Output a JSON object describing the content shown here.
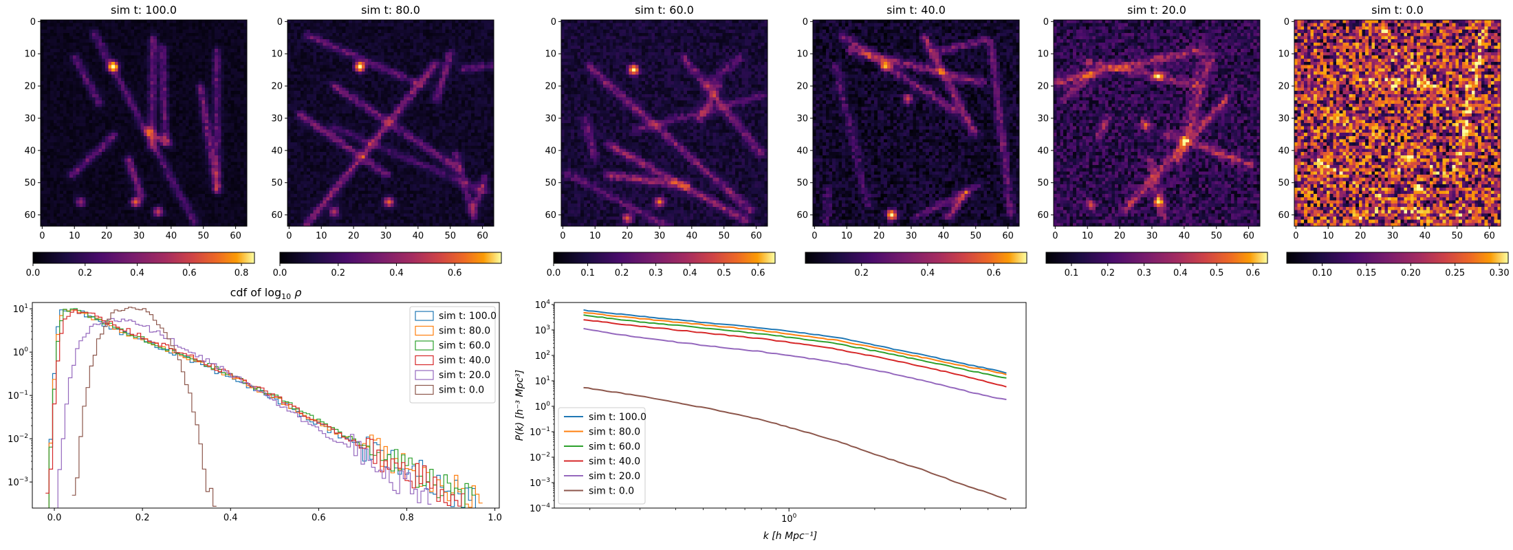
{
  "colors": {
    "series": [
      "#1f77b4",
      "#ff7f0e",
      "#2ca02c",
      "#d62728",
      "#9467bd",
      "#8c564b"
    ]
  },
  "chart_data": [
    {
      "type": "heatmap",
      "title": "sim t: 100.0",
      "grid_size": 64,
      "x_ticks": [
        0,
        10,
        20,
        30,
        40,
        50,
        60
      ],
      "y_ticks": [
        0,
        10,
        20,
        30,
        40,
        50,
        60
      ],
      "colormap": "inferno",
      "colorbar_range": [
        0.0,
        0.85
      ],
      "colorbar_ticks": [
        0.0,
        0.2,
        0.4,
        0.6,
        0.8
      ],
      "colorbar_labels": [
        "0.0",
        "0.2",
        "0.4",
        "0.6",
        "0.8"
      ],
      "hotspots": [
        [
          22,
          14,
          0.85
        ],
        [
          29,
          56,
          0.55
        ],
        [
          36,
          59,
          0.45
        ],
        [
          12,
          56,
          0.35
        ]
      ],
      "background_level": 0.04,
      "seed": 11
    },
    {
      "type": "heatmap",
      "title": "sim t: 80.0",
      "grid_size": 64,
      "x_ticks": [
        0,
        10,
        20,
        30,
        40,
        50,
        60
      ],
      "y_ticks": [
        0,
        10,
        20,
        30,
        40,
        50,
        60
      ],
      "colormap": "inferno",
      "colorbar_range": [
        0.0,
        0.76
      ],
      "colorbar_ticks": [
        0.0,
        0.2,
        0.4,
        0.6
      ],
      "colorbar_labels": [
        "0.0",
        "0.2",
        "0.4",
        "0.6"
      ],
      "hotspots": [
        [
          22,
          14,
          0.75
        ],
        [
          31,
          56,
          0.5
        ],
        [
          14,
          59,
          0.35
        ]
      ],
      "background_level": 0.05,
      "seed": 23
    },
    {
      "type": "heatmap",
      "title": "sim t: 60.0",
      "grid_size": 64,
      "x_ticks": [
        0,
        10,
        20,
        30,
        40,
        50,
        60
      ],
      "y_ticks": [
        0,
        10,
        20,
        30,
        40,
        50,
        60
      ],
      "colormap": "inferno",
      "colorbar_range": [
        0.0,
        0.65
      ],
      "colorbar_ticks": [
        0.0,
        0.1,
        0.2,
        0.3,
        0.4,
        0.5,
        0.6
      ],
      "colorbar_labels": [
        "0.0",
        "0.1",
        "0.2",
        "0.3",
        "0.4",
        "0.5",
        "0.6"
      ],
      "hotspots": [
        [
          22,
          15,
          0.62
        ],
        [
          30,
          56,
          0.45
        ],
        [
          20,
          61,
          0.4
        ]
      ],
      "background_level": 0.06,
      "seed": 37
    },
    {
      "type": "heatmap",
      "title": "sim t: 40.0",
      "grid_size": 64,
      "x_ticks": [
        0,
        10,
        20,
        30,
        40,
        50,
        60
      ],
      "y_ticks": [
        0,
        10,
        20,
        30,
        40,
        50,
        60
      ],
      "colormap": "inferno",
      "colorbar_range": [
        0.03,
        0.7
      ],
      "colorbar_ticks": [
        0.2,
        0.4,
        0.6
      ],
      "colorbar_labels": [
        "0.2",
        "0.4",
        "0.6"
      ],
      "hotspots": [
        [
          24,
          60,
          0.7
        ],
        [
          22,
          14,
          0.45
        ],
        [
          29,
          24,
          0.4
        ]
      ],
      "background_level": 0.08,
      "seed": 53
    },
    {
      "type": "heatmap",
      "title": "sim t: 20.0",
      "grid_size": 64,
      "x_ticks": [
        0,
        10,
        20,
        30,
        40,
        50,
        60
      ],
      "y_ticks": [
        0,
        10,
        20,
        30,
        40,
        50,
        60
      ],
      "colormap": "inferno",
      "colorbar_range": [
        0.03,
        0.64
      ],
      "colorbar_ticks": [
        0.1,
        0.2,
        0.3,
        0.4,
        0.5,
        0.6
      ],
      "colorbar_labels": [
        "0.1",
        "0.2",
        "0.3",
        "0.4",
        "0.5",
        "0.6"
      ],
      "hotspots": [
        [
          32,
          17,
          0.5
        ],
        [
          28,
          32,
          0.45
        ],
        [
          32,
          56,
          0.45
        ],
        [
          11,
          57,
          0.4
        ]
      ],
      "background_level": 0.12,
      "seed": 71
    },
    {
      "type": "heatmap",
      "title": "sim t: 0.0",
      "grid_size": 64,
      "x_ticks": [
        0,
        10,
        20,
        30,
        40,
        50,
        60
      ],
      "y_ticks": [
        0,
        10,
        20,
        30,
        40,
        50,
        60
      ],
      "colormap": "inferno",
      "colorbar_range": [
        0.06,
        0.31
      ],
      "colorbar_ticks": [
        0.1,
        0.15,
        0.2,
        0.25,
        0.3
      ],
      "colorbar_labels": [
        "0.10",
        "0.15",
        "0.20",
        "0.25",
        "0.30"
      ],
      "hotspots": [
        [
          27,
          3,
          0.3
        ],
        [
          18,
          16,
          0.28
        ],
        [
          38,
          52,
          0.3
        ],
        [
          20,
          61,
          0.27
        ],
        [
          9,
          45,
          0.26
        ],
        [
          52,
          20,
          0.24
        ]
      ],
      "background_level": 0.17,
      "seed": 97
    },
    {
      "type": "line",
      "subtype": "step-histogram",
      "title": "cdf of log",
      "title_sub": "10",
      "title_rho": "ρ",
      "yscale": "log",
      "xlim": [
        -0.05,
        1.01
      ],
      "ylim": [
        0.00025,
        14
      ],
      "x_ticks": [
        0.0,
        0.2,
        0.4,
        0.6,
        0.8,
        1.0
      ],
      "x_tick_labels": [
        "0.0",
        "0.2",
        "0.4",
        "0.6",
        "0.8",
        "1.0"
      ],
      "y_ticks": [
        0.001,
        0.01,
        0.1,
        1,
        10
      ],
      "y_tick_base": [
        "10",
        "10",
        "10",
        "10",
        "10"
      ],
      "y_tick_exp": [
        "−3",
        "−2",
        "−1",
        "0",
        "1"
      ],
      "legend_position": "top-right",
      "series": [
        {
          "name": "sim t: 100.0",
          "x": [
            -0.02,
            0.0,
            0.01,
            0.02,
            0.04,
            0.06,
            0.1,
            0.15,
            0.2,
            0.3,
            0.4,
            0.5,
            0.6,
            0.7,
            0.8,
            0.9,
            0.96
          ],
          "y": [
            0.00025,
            2.0,
            8.0,
            10.0,
            10.0,
            8.0,
            5.0,
            2.8,
            1.8,
            0.7,
            0.25,
            0.08,
            0.02,
            0.006,
            0.002,
            0.0006,
            0.00035
          ]
        },
        {
          "name": "sim t: 80.0",
          "x": [
            -0.02,
            0.0,
            0.01,
            0.02,
            0.04,
            0.06,
            0.1,
            0.15,
            0.2,
            0.3,
            0.4,
            0.5,
            0.6,
            0.7,
            0.8,
            0.9,
            0.97
          ],
          "y": [
            0.00025,
            1.5,
            7.0,
            10.0,
            10.0,
            8.0,
            5.2,
            3.0,
            1.9,
            0.75,
            0.26,
            0.085,
            0.022,
            0.007,
            0.0025,
            0.0007,
            0.00035
          ]
        },
        {
          "name": "sim t: 60.0",
          "x": [
            -0.02,
            0.0,
            0.01,
            0.02,
            0.04,
            0.06,
            0.1,
            0.15,
            0.2,
            0.3,
            0.4,
            0.5,
            0.6,
            0.7,
            0.8,
            0.9,
            0.95
          ],
          "y": [
            0.00025,
            0.8,
            5.0,
            8.5,
            9.5,
            8.5,
            5.5,
            3.2,
            2.0,
            0.8,
            0.28,
            0.09,
            0.024,
            0.007,
            0.002,
            0.0006,
            0.00035
          ]
        },
        {
          "name": "sim t: 40.0",
          "x": [
            -0.02,
            0.0,
            0.01,
            0.02,
            0.04,
            0.06,
            0.1,
            0.15,
            0.2,
            0.3,
            0.4,
            0.5,
            0.6,
            0.7,
            0.8,
            0.88,
            0.93
          ],
          "y": [
            0.00025,
            0.3,
            2.5,
            6.0,
            8.5,
            9.0,
            6.0,
            3.5,
            2.2,
            0.85,
            0.3,
            0.09,
            0.022,
            0.006,
            0.0018,
            0.0006,
            0.00035
          ]
        },
        {
          "name": "sim t: 20.0",
          "x": [
            0.0,
            0.01,
            0.02,
            0.03,
            0.05,
            0.08,
            0.12,
            0.16,
            0.2,
            0.25,
            0.3,
            0.4,
            0.5,
            0.6,
            0.7,
            0.8,
            0.85
          ],
          "y": [
            0.00025,
            0.002,
            0.03,
            0.2,
            1.5,
            4.0,
            6.0,
            5.5,
            4.0,
            2.2,
            1.1,
            0.3,
            0.07,
            0.015,
            0.004,
            0.0008,
            0.0003
          ]
        },
        {
          "name": "sim t: 0.0",
          "x": [
            0.04,
            0.05,
            0.06,
            0.08,
            0.1,
            0.12,
            0.14,
            0.17,
            0.2,
            0.22,
            0.25,
            0.28,
            0.3,
            0.32,
            0.34,
            0.36
          ],
          "y": [
            0.00025,
            0.003,
            0.03,
            0.5,
            2.5,
            6.0,
            9.5,
            11.0,
            9.0,
            6.0,
            2.5,
            0.6,
            0.15,
            0.02,
            0.002,
            0.00025
          ]
        }
      ]
    },
    {
      "type": "line",
      "xscale": "log",
      "yscale": "log",
      "xlabel": "k [h Mpc⁻¹]",
      "ylabel": "P(k) [h⁻³ Mpc³]",
      "xlim": [
        0.15,
        6.8
      ],
      "ylim": [
        0.0001,
        12000
      ],
      "x_ticks_major": [
        1
      ],
      "x_tick_base": [
        "10"
      ],
      "x_tick_exp": [
        "0"
      ],
      "y_ticks": [
        0.0001,
        0.001,
        0.01,
        0.1,
        1,
        10,
        100,
        1000,
        10000
      ],
      "y_tick_base": [
        "10",
        "10",
        "10",
        "10",
        "10",
        "10",
        "10",
        "10",
        "10"
      ],
      "y_tick_exp": [
        "−4",
        "−3",
        "−2",
        "−1",
        "0",
        "1",
        "2",
        "3",
        "4"
      ],
      "legend_position": "lower-left",
      "series": [
        {
          "name": "sim t: 100.0",
          "x": [
            0.19,
            0.3,
            0.5,
            0.8,
            1.0,
            1.5,
            2.0,
            3.0,
            4.0,
            5.0,
            5.8
          ],
          "y": [
            6000,
            3500,
            2000,
            1200,
            900,
            500,
            250,
            100,
            50,
            30,
            20
          ]
        },
        {
          "name": "sim t: 80.0",
          "x": [
            0.19,
            0.3,
            0.5,
            0.8,
            1.0,
            1.5,
            2.0,
            3.0,
            4.0,
            5.0,
            5.8
          ],
          "y": [
            4800,
            2800,
            1600,
            950,
            700,
            380,
            200,
            80,
            40,
            26,
            18
          ]
        },
        {
          "name": "sim t: 60.0",
          "x": [
            0.19,
            0.3,
            0.5,
            0.8,
            1.0,
            1.5,
            2.0,
            3.0,
            4.0,
            5.0,
            5.8
          ],
          "y": [
            3800,
            2100,
            1200,
            700,
            520,
            280,
            150,
            60,
            30,
            18,
            13
          ]
        },
        {
          "name": "sim t: 40.0",
          "x": [
            0.19,
            0.3,
            0.5,
            0.8,
            1.0,
            1.5,
            2.0,
            3.0,
            4.0,
            5.0,
            5.8
          ],
          "y": [
            2500,
            1400,
            780,
            450,
            330,
            170,
            90,
            35,
            17,
            9,
            6
          ]
        },
        {
          "name": "sim t: 20.0",
          "x": [
            0.19,
            0.3,
            0.5,
            0.8,
            1.0,
            1.5,
            2.0,
            3.0,
            4.0,
            5.0,
            5.8
          ],
          "y": [
            1100,
            500,
            250,
            140,
            100,
            50,
            27,
            10,
            4.5,
            2.5,
            1.8
          ]
        },
        {
          "name": "sim t: 0.0",
          "x": [
            0.19,
            0.3,
            0.5,
            0.8,
            1.0,
            1.5,
            2.0,
            3.0,
            4.0,
            5.0,
            5.8
          ],
          "y": [
            5.5,
            2.5,
            0.9,
            0.3,
            0.15,
            0.04,
            0.013,
            0.003,
            0.0009,
            0.0004,
            0.00022
          ]
        }
      ]
    }
  ]
}
